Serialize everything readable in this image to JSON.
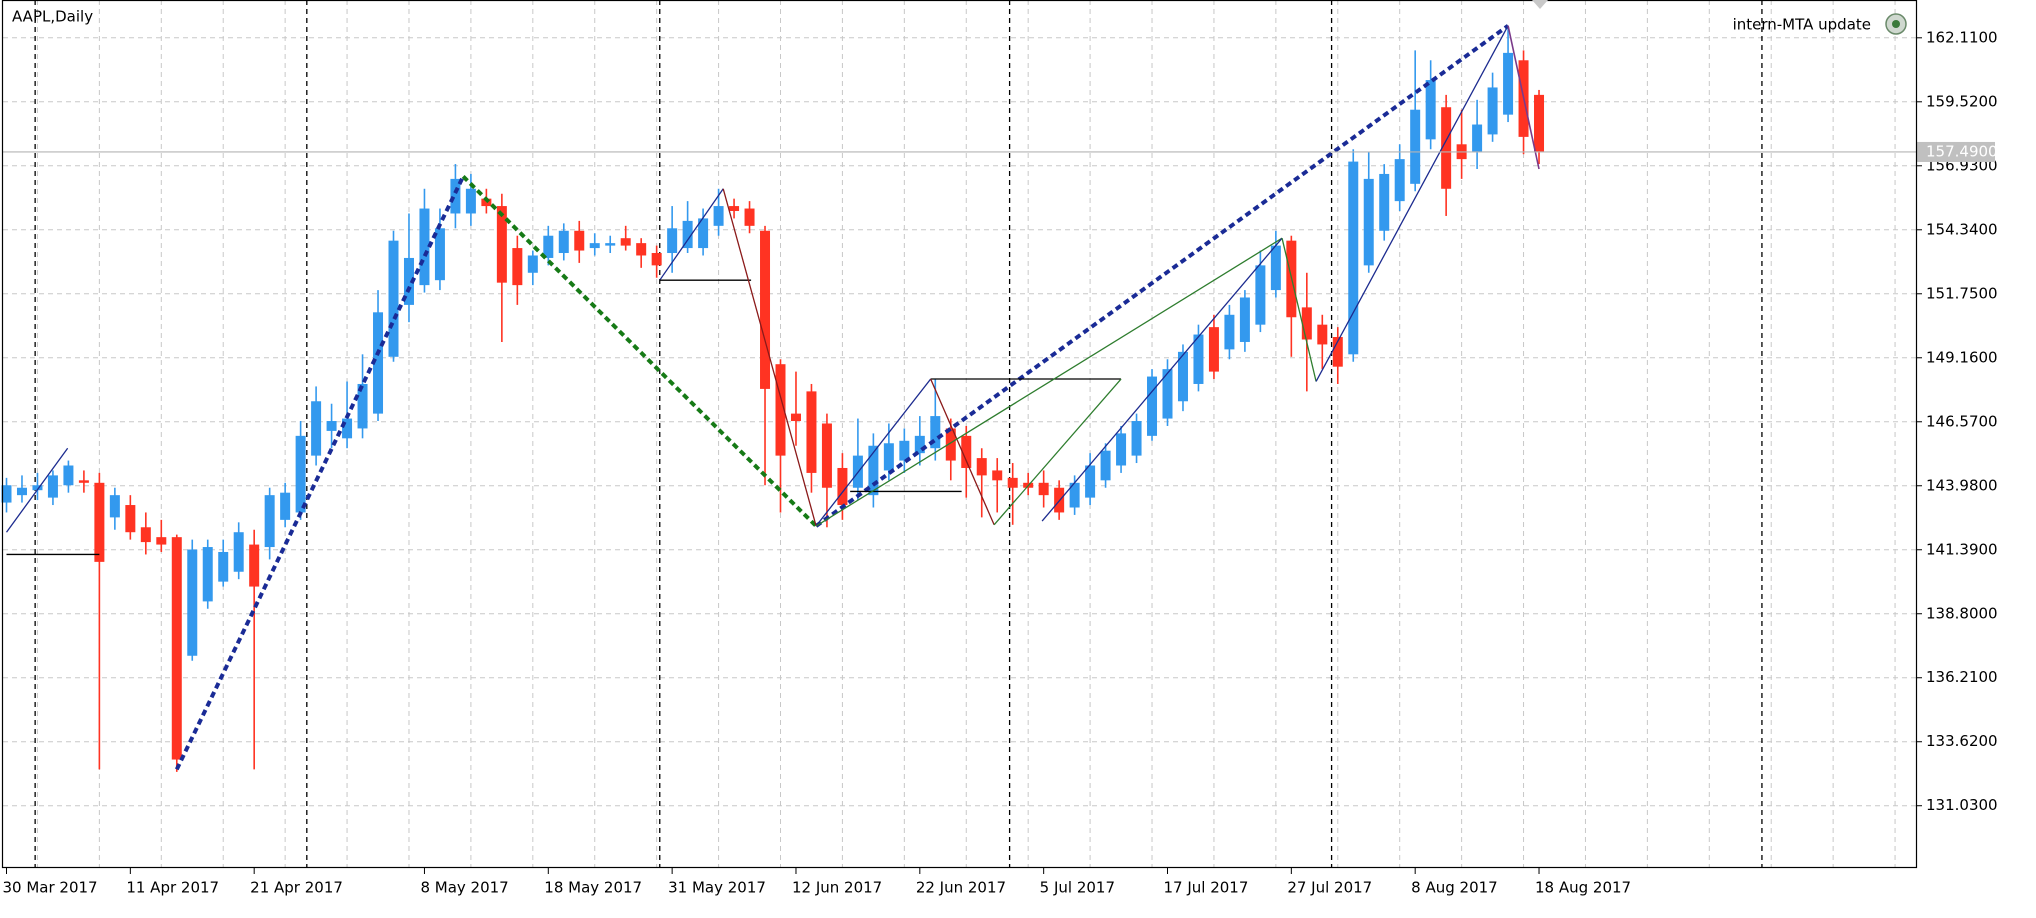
{
  "chart_data": {
    "type": "candlestick",
    "title": "AAPL,Daily",
    "indicator_label": "intern-MTA update",
    "up_color": "#3399ee",
    "down_color": "#ff3322",
    "grid": true,
    "categories": [
      "30 Mar 2017",
      null,
      null,
      null,
      null,
      null,
      null,
      null,
      "11 Apr 2017",
      null,
      null,
      null,
      null,
      null,
      null,
      null,
      "21 Apr 2017",
      null,
      null,
      null,
      null,
      null,
      null,
      null,
      null,
      null,
      null,
      "8 May 2017",
      null,
      null,
      null,
      null,
      null,
      null,
      null,
      "18 May 2017",
      null,
      null,
      null,
      null,
      null,
      null,
      null,
      "31 May 2017",
      null,
      null,
      null,
      null,
      null,
      null,
      null,
      "12 Jun 2017",
      null,
      null,
      null,
      null,
      null,
      null,
      null,
      "22 Jun 2017",
      null,
      null,
      null,
      null,
      null,
      null,
      null,
      "5 Jul 2017",
      null,
      null,
      null,
      null,
      null,
      null,
      null,
      "17 Jul 2017",
      null,
      null,
      null,
      null,
      null,
      null,
      null,
      "27 Jul 2017",
      null,
      null,
      null,
      null,
      null,
      null,
      null,
      "8 Aug 2017",
      null,
      null,
      null,
      null,
      null,
      null,
      null,
      "18 Aug 2017"
    ],
    "open": [
      143.3,
      143.6,
      143.8,
      143.5,
      144.0,
      144.2,
      144.1,
      142.7,
      143.2,
      142.3,
      141.9,
      141.9,
      137.1,
      139.3,
      140.1,
      140.5,
      141.6,
      141.5,
      142.6,
      142.9,
      145.2,
      146.2,
      145.9,
      146.3,
      146.9,
      149.2,
      151.3,
      152.1,
      152.3,
      155.0,
      155.0,
      155.6,
      155.3,
      153.6,
      152.6,
      153.2,
      153.4,
      154.3,
      153.6,
      153.7,
      154.0,
      153.8,
      153.4,
      153.4,
      153.6,
      153.6,
      154.5,
      155.3,
      155.2,
      154.3,
      148.9,
      146.9,
      147.8,
      146.5,
      144.7,
      143.9,
      143.6,
      144.6,
      145.0,
      145.3,
      145.5,
      146.3,
      146.0,
      145.1,
      144.6,
      144.3,
      144.1,
      144.1,
      143.9,
      143.1,
      143.5,
      144.2,
      144.8,
      145.2,
      146.0,
      146.7,
      147.4,
      148.1,
      150.4,
      149.5,
      149.8,
      150.5,
      151.9,
      153.9,
      151.2,
      150.5,
      150.0,
      149.3,
      152.9,
      154.3,
      155.5,
      156.2,
      158.0,
      159.3,
      157.8,
      157.5,
      158.2,
      159.0,
      161.2,
      159.8
    ],
    "high": [
      144.3,
      144.4,
      144.5,
      144.6,
      145.0,
      144.6,
      144.5,
      143.9,
      143.6,
      142.9,
      142.6,
      142.0,
      141.8,
      141.8,
      141.8,
      142.5,
      142.2,
      143.9,
      144.1,
      146.6,
      148.0,
      147.3,
      148.2,
      149.3,
      151.9,
      154.3,
      155.0,
      156.0,
      155.2,
      157.0,
      156.6,
      156.0,
      155.8,
      154.1,
      153.5,
      154.5,
      154.6,
      154.7,
      154.2,
      154.1,
      154.5,
      154.0,
      153.7,
      155.3,
      155.5,
      155.2,
      156.0,
      155.6,
      155.5,
      154.5,
      149.1,
      148.6,
      148.1,
      146.9,
      145.3,
      146.7,
      146.1,
      146.5,
      146.3,
      146.8,
      148.3,
      146.7,
      146.4,
      145.5,
      145.1,
      144.9,
      144.5,
      144.6,
      144.2,
      144.4,
      145.3,
      145.7,
      146.4,
      146.9,
      148.7,
      149.1,
      149.7,
      150.5,
      150.9,
      151.3,
      151.9,
      153.5,
      154.3,
      154.1,
      152.6,
      150.9,
      150.4,
      157.6,
      157.5,
      157.0,
      157.8,
      161.6,
      161.2,
      159.8,
      159.2,
      159.6,
      160.7,
      162.6,
      161.6,
      160.0
    ],
    "low": [
      142.9,
      143.3,
      143.4,
      143.2,
      143.7,
      143.7,
      132.5,
      142.2,
      141.8,
      141.2,
      141.3,
      132.4,
      136.9,
      139.0,
      139.9,
      140.2,
      132.5,
      141.0,
      142.3,
      142.6,
      144.8,
      145.5,
      145.5,
      145.9,
      146.6,
      149.0,
      150.6,
      151.8,
      151.9,
      154.4,
      154.5,
      155.0,
      149.8,
      151.3,
      152.1,
      152.9,
      153.1,
      153.0,
      153.3,
      153.4,
      153.5,
      152.8,
      152.4,
      152.6,
      153.4,
      153.3,
      154.1,
      154.8,
      154.2,
      144.0,
      142.9,
      145.6,
      143.7,
      142.3,
      142.6,
      143.4,
      143.1,
      144.2,
      144.5,
      144.8,
      145.0,
      144.2,
      143.5,
      142.7,
      142.9,
      142.4,
      143.6,
      143.1,
      142.6,
      142.8,
      143.2,
      143.9,
      144.5,
      144.9,
      145.8,
      146.4,
      147.0,
      147.8,
      148.3,
      149.1,
      149.4,
      150.2,
      151.6,
      149.2,
      147.8,
      148.7,
      148.1,
      149.0,
      152.6,
      153.9,
      155.1,
      155.9,
      157.6,
      154.9,
      156.4,
      156.8,
      157.9,
      158.7,
      157.4,
      157.0
    ],
    "close": [
      144.0,
      143.9,
      144.0,
      144.4,
      144.8,
      144.1,
      140.9,
      143.6,
      142.1,
      141.7,
      141.6,
      132.9,
      141.4,
      141.5,
      141.3,
      142.1,
      139.9,
      143.6,
      143.7,
      146.0,
      147.4,
      146.6,
      146.7,
      148.1,
      151.0,
      153.9,
      153.2,
      155.2,
      154.4,
      156.4,
      156.0,
      155.3,
      152.2,
      152.1,
      153.3,
      154.1,
      154.3,
      153.5,
      153.8,
      153.8,
      153.7,
      153.3,
      152.9,
      154.4,
      154.7,
      154.8,
      155.3,
      155.1,
      154.5,
      147.9,
      145.2,
      146.6,
      144.5,
      143.9,
      143.2,
      145.2,
      145.6,
      145.7,
      145.8,
      146.0,
      146.8,
      145.0,
      144.7,
      144.4,
      144.2,
      143.9,
      143.9,
      143.6,
      142.9,
      144.1,
      144.8,
      145.4,
      146.1,
      146.6,
      148.4,
      148.7,
      149.4,
      150.1,
      148.6,
      150.9,
      151.6,
      152.9,
      153.7,
      150.8,
      149.9,
      149.7,
      148.8,
      157.1,
      156.4,
      156.6,
      157.2,
      159.2,
      160.4,
      156.0,
      157.2,
      158.6,
      160.1,
      161.5,
      158.1,
      157.49
    ],
    "ylim": [
      128.51,
      163.64
    ],
    "yticks": [
      {
        "value": 162.11,
        "label": "162.1100"
      },
      {
        "value": 159.52,
        "label": "159.5200"
      },
      {
        "value": 156.93,
        "label": "156.9300"
      },
      {
        "value": 154.34,
        "label": "154.3400"
      },
      {
        "value": 151.75,
        "label": "151.7500"
      },
      {
        "value": 149.16,
        "label": "149.1600"
      },
      {
        "value": 146.57,
        "label": "146.5700"
      },
      {
        "value": 143.98,
        "label": "143.9800"
      },
      {
        "value": 141.39,
        "label": "141.3900"
      },
      {
        "value": 138.8,
        "label": "138.8000"
      },
      {
        "value": 136.21,
        "label": "136.2100"
      },
      {
        "value": 133.62,
        "label": "133.6200"
      },
      {
        "value": 131.03,
        "label": "131.0300"
      }
    ],
    "last_price": {
      "value": 157.49,
      "label": "157.4900"
    },
    "overlays": [
      {
        "color": "#1a2b96",
        "width": 4,
        "dash": true,
        "x": [
          11,
          29.5
        ],
        "y": [
          132.5,
          156.5
        ]
      },
      {
        "color": "#167a16",
        "width": 4,
        "dash": true,
        "x": [
          29.5,
          52.3
        ],
        "y": [
          156.5,
          142.35
        ]
      },
      {
        "color": "#1a2b96",
        "width": 4,
        "dash": true,
        "x": [
          52.3,
          97
        ],
        "y": [
          142.35,
          162.6
        ]
      },
      {
        "color": "#1c2b8f",
        "width": 1.3,
        "dash": false,
        "x": [
          0,
          3.95
        ],
        "y": [
          142.1,
          145.5
        ]
      },
      {
        "color": "#000000",
        "width": 1.3,
        "dash": false,
        "x": [
          0,
          6
        ],
        "y": [
          141.2,
          141.2
        ]
      },
      {
        "color": "#1c2b8f",
        "width": 1.3,
        "dash": false,
        "x": [
          42.2,
          46.3
        ],
        "y": [
          152.3,
          156.0
        ]
      },
      {
        "color": "#000000",
        "width": 1.3,
        "dash": false,
        "x": [
          42.2,
          48.1
        ],
        "y": [
          152.3,
          152.3
        ]
      },
      {
        "color": "#8b1a1a",
        "width": 1.3,
        "dash": false,
        "x": [
          46.3,
          52.3
        ],
        "y": [
          156.0,
          142.35
        ]
      },
      {
        "color": "#1c2b8f",
        "width": 1.3,
        "dash": false,
        "x": [
          52.3,
          59.7
        ],
        "y": [
          142.35,
          148.3
        ]
      },
      {
        "color": "#000000",
        "width": 1.3,
        "dash": false,
        "x": [
          59.7,
          72
        ],
        "y": [
          148.3,
          148.3
        ]
      },
      {
        "color": "#000000",
        "width": 1.3,
        "dash": false,
        "x": [
          54.5,
          61.7
        ],
        "y": [
          143.75,
          143.75
        ]
      },
      {
        "color": "#8b1a1a",
        "width": 1.3,
        "dash": false,
        "x": [
          59.7,
          63.8
        ],
        "y": [
          148.3,
          142.4
        ]
      },
      {
        "color": "#2e7d2e",
        "width": 1.3,
        "dash": false,
        "x": [
          52.3,
          82.4
        ],
        "y": [
          142.35,
          154.0
        ]
      },
      {
        "color": "#2e7d2e",
        "width": 1.3,
        "dash": false,
        "x": [
          63.8,
          72
        ],
        "y": [
          142.4,
          148.3
        ]
      },
      {
        "color": "#1c2b8f",
        "width": 1.3,
        "dash": false,
        "x": [
          66.9,
          82.4
        ],
        "y": [
          142.55,
          154.0
        ]
      },
      {
        "color": "#2e7d2e",
        "width": 1.3,
        "dash": false,
        "x": [
          82.4,
          84.6
        ],
        "y": [
          154.0,
          148.2
        ]
      },
      {
        "color": "#1c2b8f",
        "width": 1.3,
        "dash": false,
        "x": [
          84.6,
          97
        ],
        "y": [
          148.2,
          162.6
        ]
      },
      {
        "color": "#7a3a8a",
        "width": 1.6,
        "dash": false,
        "x": [
          97,
          99
        ],
        "y": [
          162.6,
          156.8
        ]
      }
    ]
  }
}
